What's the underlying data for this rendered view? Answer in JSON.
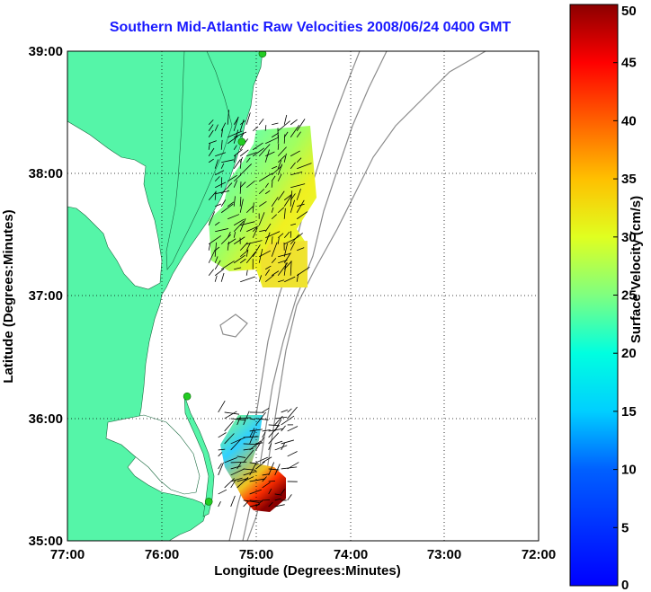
{
  "title": "Southern Mid-Atlantic Raw Velocities 2008/06/24 0400 GMT",
  "x_axis": {
    "label": "Longitude (Degrees:Minutes)",
    "ticks": [
      "77:00",
      "76:00",
      "75:00",
      "74:00",
      "73:00",
      "72:00"
    ]
  },
  "y_axis": {
    "label": "Latitude (Degrees:Minutes)",
    "ticks": [
      "39:00",
      "38:00",
      "37:00",
      "36:00",
      "35:00"
    ]
  },
  "colorbar": {
    "label": "Surface Velocity (cm/s)",
    "ticks": [
      "50",
      "45",
      "40",
      "35",
      "30",
      "25",
      "20",
      "15",
      "10",
      "5",
      "0"
    ],
    "min": 0,
    "max": 50
  },
  "colors": {
    "land": "#55f5a8",
    "title": "#1a1aff",
    "bathymetry": "#8c8c8c",
    "station": "#22cc22"
  },
  "map_extent": {
    "lon": [
      -77,
      -72
    ],
    "lat": [
      35,
      39
    ]
  },
  "velocity_regions": [
    {
      "name": "delmarva-south-patch",
      "lat": [
        37.1,
        38.4
      ],
      "lon": [
        -75.5,
        -74.5
      ]
    },
    {
      "name": "outer-banks-patch",
      "lat": [
        35.25,
        36.05
      ],
      "lon": [
        -75.4,
        -74.6
      ]
    }
  ],
  "stations": [
    {
      "name": "station-north",
      "lon": -74.93,
      "lat": 38.98
    },
    {
      "name": "station-delmarva",
      "lon": -75.15,
      "lat": 38.26
    },
    {
      "name": "station-hatteras-north",
      "lon": -75.73,
      "lat": 36.18
    },
    {
      "name": "station-hatteras-south",
      "lon": -75.5,
      "lat": 35.32
    }
  ]
}
